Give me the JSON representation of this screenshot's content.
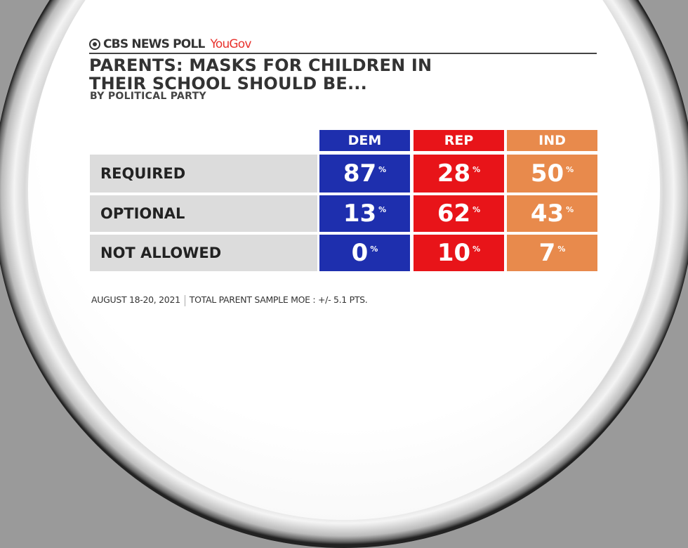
{
  "brand": {
    "network": "CBS NEWS POLL",
    "partner": "YouGov"
  },
  "title": "PARENTS: MASKS FOR CHILDREN IN THEIR SCHOOL SHOULD BE...",
  "subtitle": "BY POLITICAL PARTY",
  "footer": {
    "date": "AUGUST 18-20, 2021",
    "moe": "TOTAL PARENT SAMPLE MOE : +/- 5.1 PTS."
  },
  "chart_data": {
    "type": "table",
    "unit": "%",
    "columns": [
      {
        "name": "DEM",
        "color": "#1e2fae"
      },
      {
        "name": "REP",
        "color": "#e81419"
      },
      {
        "name": "IND",
        "color": "#e88a4c"
      }
    ],
    "rows": [
      {
        "label": "REQUIRED",
        "values": [
          87,
          28,
          50
        ]
      },
      {
        "label": "OPTIONAL",
        "values": [
          13,
          62,
          43
        ]
      },
      {
        "label": "NOT ALLOWED",
        "values": [
          0,
          10,
          7
        ]
      }
    ]
  }
}
